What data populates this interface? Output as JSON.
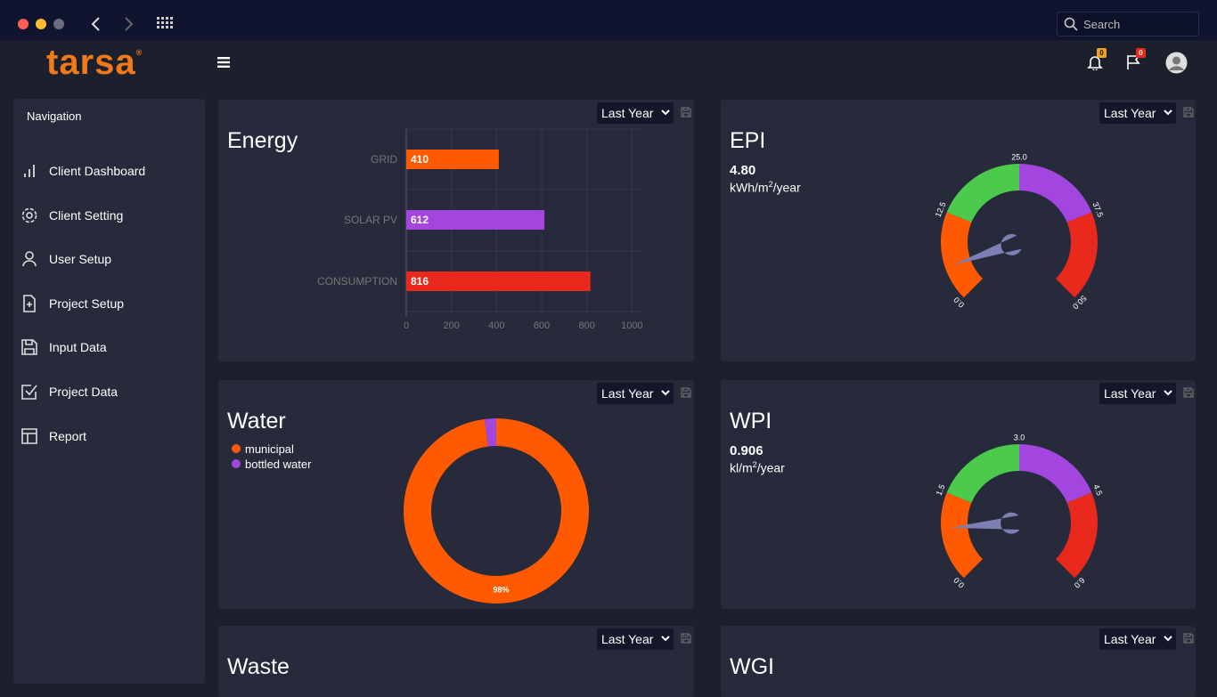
{
  "browser": {
    "search": "Search"
  },
  "header": {
    "logo": "tarsa",
    "logo_mark": "®",
    "notifications": "0",
    "flags": "0"
  },
  "navigation": {
    "title": "Navigation",
    "items": [
      "Client Dashboard",
      "Client Setting",
      "User Setup",
      "Project Setup",
      "Input Data",
      "Project Data",
      "Report"
    ]
  },
  "panels": {
    "energy": {
      "title": "Energy",
      "period": "Last Year",
      "chart_data": {
        "type": "bar",
        "categories": [
          "GRID",
          "SOLAR PV",
          "CONSUMPTION"
        ],
        "values": [
          410,
          612,
          816
        ],
        "colors": [
          "#ff5a00",
          "#a346e0",
          "#e8291c"
        ],
        "xlim": [
          0,
          1050
        ],
        "xticks": [
          0,
          200,
          400,
          600,
          800,
          1000
        ],
        "grid": true
      }
    },
    "epi": {
      "title": "EPI",
      "unit": [
        "kWh/m",
        "2",
        "/year"
      ],
      "chart_data": {
        "type": "gauge",
        "value": 4.8,
        "value_label": "4.80",
        "ylim": [
          0,
          50
        ],
        "yticks": [
          {
            "value": 0,
            "label": "0.0"
          },
          {
            "value": 12.5,
            "label": "12.5"
          },
          {
            "value": 25,
            "label": "25.0"
          },
          {
            "value": 37.5,
            "label": "37.5"
          },
          {
            "value": 50,
            "label": "50.0"
          }
        ],
        "colors": [
          "#ff5a00",
          "#4cca4c",
          "#a346e0",
          "#e8291c"
        ],
        "needle_color": "#7b7fb3"
      },
      "period": "Last Year"
    },
    "water": {
      "title": "Water",
      "period": "Last Year",
      "chart_data": {
        "type": "donut",
        "categories": [
          "municipal",
          "bottled water"
        ],
        "values": [
          98,
          2
        ],
        "value_labels": [
          "98%",
          null
        ],
        "colors": [
          "#ff5a00",
          "#a346e0"
        ]
      }
    },
    "wpi": {
      "title": "WPI",
      "unit": [
        "kl/m",
        "2",
        "/year"
      ],
      "chart_data": {
        "type": "gauge",
        "value": 0.906,
        "value_label": "0.906",
        "ylim": [
          0,
          6
        ],
        "yticks": [
          {
            "value": 0,
            "label": "0.0"
          },
          {
            "value": 1.5,
            "label": "1.5"
          },
          {
            "value": 3,
            "label": "3.0"
          },
          {
            "value": 4.5,
            "label": "4.5"
          },
          {
            "value": 6,
            "label": "6.0"
          }
        ],
        "colors": [
          "#ff5a00",
          "#4cca4c",
          "#a346e0",
          "#e8291c"
        ],
        "needle_color": "#7b7fb3"
      },
      "period": "Last Year"
    },
    "waste": {
      "title": "Waste",
      "period": "Last Year"
    },
    "wgi": {
      "title": "WGI",
      "period": "Last Year"
    }
  }
}
